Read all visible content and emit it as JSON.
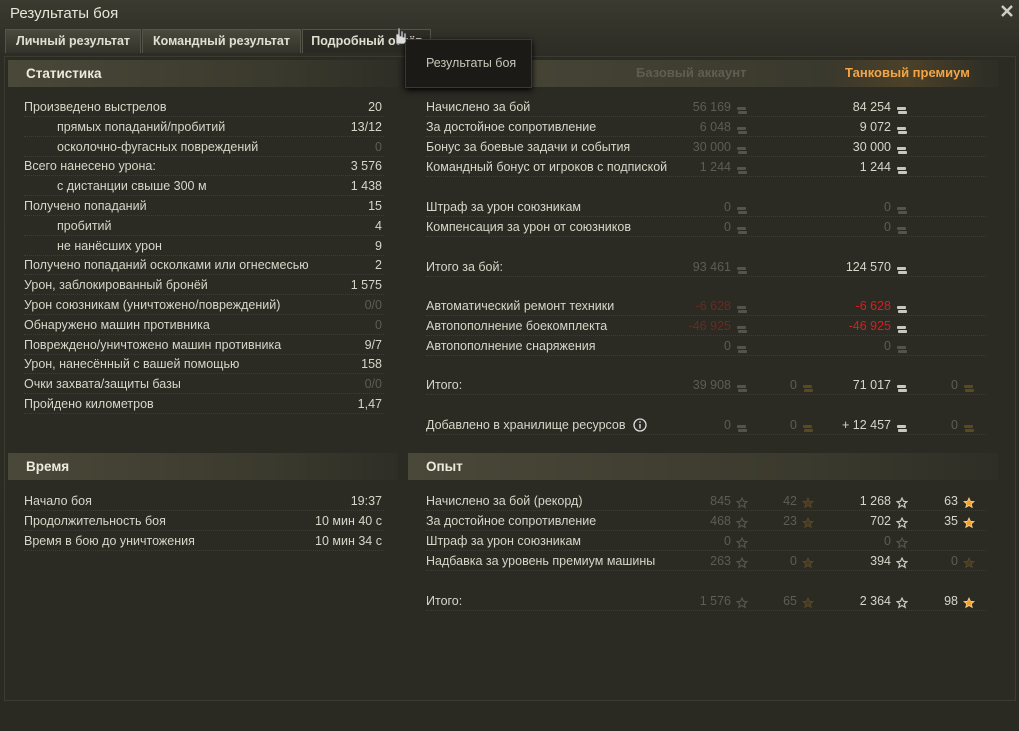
{
  "window": {
    "title": "Результаты боя"
  },
  "tabs": [
    "Личный результат",
    "Командный результат",
    "Подробный отчёт"
  ],
  "tooltip": "Результаты боя",
  "statistics": {
    "title": "Статистика",
    "rows": [
      {
        "label": "Произведено выстрелов",
        "value": "20"
      },
      {
        "label": "прямых попаданий/пробитий",
        "value": "13/12"
      },
      {
        "label": "осколочно-фугасных повреждений",
        "value": "0"
      },
      {
        "label": "Всего нанесено урона:",
        "value": "3 576"
      },
      {
        "label": "с дистанции свыше 300 м",
        "value": "1 438"
      },
      {
        "label": "Получено попаданий",
        "value": "15"
      },
      {
        "label": "пробитий",
        "value": "4"
      },
      {
        "label": "не нанёсших урон",
        "value": "9"
      },
      {
        "label": "Получено попаданий осколками или огнесмесью",
        "value": "2"
      },
      {
        "label": "Урон, заблокированный бронёй",
        "value": "1 575"
      },
      {
        "label": "Урон союзникам (уничтожено/повреждений)",
        "value": "0/0"
      },
      {
        "label": "Обнаружено машин противника",
        "value": "0"
      },
      {
        "label": "Повреждено/уничтожено машин противника",
        "value": "9/7"
      },
      {
        "label": "Урон, нанесённый с вашей помощью",
        "value": "158"
      },
      {
        "label": "Очки захвата/защиты базы",
        "value": "0/0"
      },
      {
        "label": "Пройдено километров",
        "value": "1,47"
      }
    ]
  },
  "time": {
    "title": "Время",
    "rows": [
      {
        "label": "Начало боя",
        "value": "19:37"
      },
      {
        "label": "Продолжительность боя",
        "value": "10 мин 40 с"
      },
      {
        "label": "Время в бою до уничтожения",
        "value": "10 мин 34 с"
      }
    ]
  },
  "credits": {
    "columns": [
      "Базовый аккаунт",
      "Танковый премиум"
    ],
    "rows": [
      {
        "label": "Начислено за бой",
        "base": "56 169",
        "premium": "84 254"
      },
      {
        "label": "За достойное сопротивление",
        "base": "6 048",
        "premium": "9 072"
      },
      {
        "label": "Бонус за боевые задачи и события",
        "base": "30 000",
        "premium": "30 000"
      },
      {
        "label": "Командный бонус от игроков с подпиской",
        "base": "1 244",
        "premium": "1 244"
      },
      {
        "label": "Штраф за урон союзникам",
        "base": "0",
        "premium": "0"
      },
      {
        "label": "Компенсация за урон от союзников",
        "base": "0",
        "premium": "0"
      },
      {
        "label": "Итого за бой:",
        "base": "93 461",
        "premium": "124 570"
      },
      {
        "label": "Автоматический ремонт техники",
        "base": "-6 628",
        "premium": "-6 628"
      },
      {
        "label": "Автопополнение боекомплекта",
        "base": "-46 925",
        "premium": "-46 925"
      },
      {
        "label": "Автопополнение снаряжения",
        "base": "0",
        "premium": "0"
      },
      {
        "label": "Итого:",
        "base": "39 908",
        "base_gold": "0",
        "premium": "71 017",
        "premium_gold": "0"
      },
      {
        "label": "Добавлено в хранилище ресурсов",
        "base": "0",
        "base_gold": "0",
        "premium": "+ 12 457",
        "premium_gold": "0"
      }
    ]
  },
  "experience": {
    "title": "Опыт",
    "rows": [
      {
        "label": "Начислено за бой (рекорд)",
        "base": "845",
        "base_free": "42",
        "premium": "1 268",
        "premium_free": "63"
      },
      {
        "label": "За достойное сопротивление",
        "base": "468",
        "base_free": "23",
        "premium": "702",
        "premium_free": "35"
      },
      {
        "label": "Штраф за урон союзникам",
        "base": "0",
        "premium": "0"
      },
      {
        "label": "Надбавка за уровень премиум машины",
        "base": "263",
        "base_free": "0",
        "premium": "394",
        "premium_free": "0"
      },
      {
        "label": "Итого:",
        "base": "1 576",
        "base_free": "65",
        "premium": "2 364",
        "premium_free": "98"
      }
    ]
  }
}
